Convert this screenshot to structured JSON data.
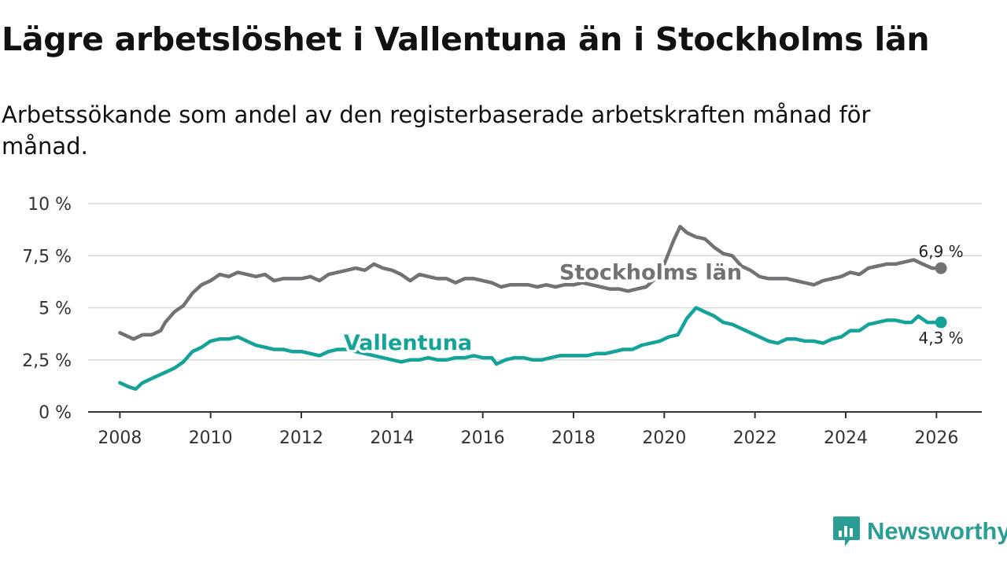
{
  "title": "Lägre arbetslöshet i Vallentuna än i Stockholms län",
  "subtitle": "Arbetssökande som andel av den registerbaserade arbetskraften månad för månad.",
  "brand": {
    "name": "Newsworthy",
    "icon": "newsworthy-logo-icon",
    "color": "#2a9d95"
  },
  "chart_data": {
    "type": "line",
    "ylim": [
      0,
      10
    ],
    "xlim": [
      2007.3,
      2027.0
    ],
    "y_ticks": [
      0,
      2.5,
      5,
      7.5,
      10
    ],
    "y_tick_labels": [
      "0 %",
      "2,5 %",
      "5 %",
      "7,5 %",
      "10 %"
    ],
    "x_ticks": [
      2008,
      2010,
      2012,
      2014,
      2016,
      2018,
      2020,
      2022,
      2024,
      2026
    ],
    "x_tick_labels": [
      "2008",
      "2010",
      "2012",
      "2014",
      "2016",
      "2018",
      "2020",
      "2022",
      "2024",
      "2026"
    ],
    "grid": true,
    "series": [
      {
        "name": "Stockholms län",
        "color": "#727176",
        "end_label": "6,9 %",
        "x": [
          2008.0,
          2008.3,
          2008.5,
          2008.7,
          2008.9,
          2009.0,
          2009.2,
          2009.4,
          2009.6,
          2009.8,
          2010.0,
          2010.2,
          2010.4,
          2010.6,
          2010.8,
          2011.0,
          2011.2,
          2011.4,
          2011.6,
          2011.8,
          2012.0,
          2012.2,
          2012.4,
          2012.6,
          2012.8,
          2013.0,
          2013.2,
          2013.4,
          2013.6,
          2013.8,
          2014.0,
          2014.2,
          2014.4,
          2014.6,
          2014.8,
          2015.0,
          2015.2,
          2015.4,
          2015.6,
          2015.8,
          2016.0,
          2016.2,
          2016.4,
          2016.6,
          2016.8,
          2017.0,
          2017.2,
          2017.4,
          2017.6,
          2017.8,
          2018.0,
          2018.2,
          2018.4,
          2018.6,
          2018.8,
          2019.0,
          2019.2,
          2019.4,
          2019.6,
          2019.8,
          2020.0,
          2020.2,
          2020.35,
          2020.5,
          2020.7,
          2020.9,
          2021.1,
          2021.3,
          2021.5,
          2021.7,
          2021.9,
          2022.1,
          2022.3,
          2022.5,
          2022.7,
          2022.9,
          2023.1,
          2023.3,
          2023.5,
          2023.7,
          2023.9,
          2024.1,
          2024.3,
          2024.5,
          2024.7,
          2024.9,
          2025.1,
          2025.3,
          2025.5,
          2025.7,
          2025.9,
          2026.1
        ],
        "values": [
          3.8,
          3.5,
          3.7,
          3.7,
          3.9,
          4.3,
          4.8,
          5.1,
          5.7,
          6.1,
          6.3,
          6.6,
          6.5,
          6.7,
          6.6,
          6.5,
          6.6,
          6.3,
          6.4,
          6.4,
          6.4,
          6.5,
          6.3,
          6.6,
          6.7,
          6.8,
          6.9,
          6.8,
          7.1,
          6.9,
          6.8,
          6.6,
          6.3,
          6.6,
          6.5,
          6.4,
          6.4,
          6.2,
          6.4,
          6.4,
          6.3,
          6.2,
          6.0,
          6.1,
          6.1,
          6.1,
          6.0,
          6.1,
          6.0,
          6.1,
          6.1,
          6.2,
          6.1,
          6.0,
          5.9,
          5.9,
          5.8,
          5.9,
          6.0,
          6.4,
          7.1,
          8.2,
          8.9,
          8.6,
          8.4,
          8.3,
          7.9,
          7.6,
          7.5,
          7.0,
          6.8,
          6.5,
          6.4,
          6.4,
          6.4,
          6.3,
          6.2,
          6.1,
          6.3,
          6.4,
          6.5,
          6.7,
          6.6,
          6.9,
          7.0,
          7.1,
          7.1,
          7.2,
          7.3,
          7.1,
          6.9,
          6.9
        ]
      },
      {
        "name": "Vallentuna",
        "color": "#14a399",
        "end_label": "4,3 %",
        "x": [
          2008.0,
          2008.2,
          2008.35,
          2008.5,
          2008.7,
          2008.9,
          2009.0,
          2009.2,
          2009.4,
          2009.6,
          2009.8,
          2010.0,
          2010.2,
          2010.4,
          2010.6,
          2010.8,
          2011.0,
          2011.2,
          2011.4,
          2011.6,
          2011.8,
          2012.0,
          2012.2,
          2012.4,
          2012.6,
          2012.8,
          2013.0,
          2013.2,
          2013.4,
          2013.6,
          2013.8,
          2014.0,
          2014.2,
          2014.4,
          2014.6,
          2014.8,
          2015.0,
          2015.2,
          2015.4,
          2015.6,
          2015.8,
          2016.0,
          2016.2,
          2016.3,
          2016.5,
          2016.7,
          2016.9,
          2017.1,
          2017.3,
          2017.5,
          2017.7,
          2017.9,
          2018.1,
          2018.3,
          2018.5,
          2018.7,
          2018.9,
          2019.1,
          2019.3,
          2019.5,
          2019.7,
          2019.9,
          2020.1,
          2020.3,
          2020.5,
          2020.7,
          2020.9,
          2021.1,
          2021.3,
          2021.5,
          2021.7,
          2021.9,
          2022.1,
          2022.3,
          2022.5,
          2022.7,
          2022.9,
          2023.1,
          2023.3,
          2023.5,
          2023.7,
          2023.9,
          2024.1,
          2024.3,
          2024.5,
          2024.7,
          2024.9,
          2025.1,
          2025.3,
          2025.45,
          2025.6,
          2025.8,
          2026.1
        ],
        "values": [
          1.4,
          1.2,
          1.1,
          1.4,
          1.6,
          1.8,
          1.9,
          2.1,
          2.4,
          2.9,
          3.1,
          3.4,
          3.5,
          3.5,
          3.6,
          3.4,
          3.2,
          3.1,
          3.0,
          3.0,
          2.9,
          2.9,
          2.8,
          2.7,
          2.9,
          3.0,
          3.0,
          2.9,
          2.8,
          2.7,
          2.6,
          2.5,
          2.4,
          2.5,
          2.5,
          2.6,
          2.5,
          2.5,
          2.6,
          2.6,
          2.7,
          2.6,
          2.6,
          2.3,
          2.5,
          2.6,
          2.6,
          2.5,
          2.5,
          2.6,
          2.7,
          2.7,
          2.7,
          2.7,
          2.8,
          2.8,
          2.9,
          3.0,
          3.0,
          3.2,
          3.3,
          3.4,
          3.6,
          3.7,
          4.5,
          5.0,
          4.8,
          4.6,
          4.3,
          4.2,
          4.0,
          3.8,
          3.6,
          3.4,
          3.3,
          3.5,
          3.5,
          3.4,
          3.4,
          3.3,
          3.5,
          3.6,
          3.9,
          3.9,
          4.2,
          4.3,
          4.4,
          4.4,
          4.3,
          4.3,
          4.6,
          4.3,
          4.3
        ]
      }
    ],
    "inline_labels": [
      {
        "series": "Stockholms län",
        "text": "Stockholms län",
        "x": 2019.7,
        "y": 6.35
      },
      {
        "series": "Vallentuna",
        "text": "Vallentuna",
        "x": 2014.35,
        "y": 2.98
      }
    ]
  }
}
